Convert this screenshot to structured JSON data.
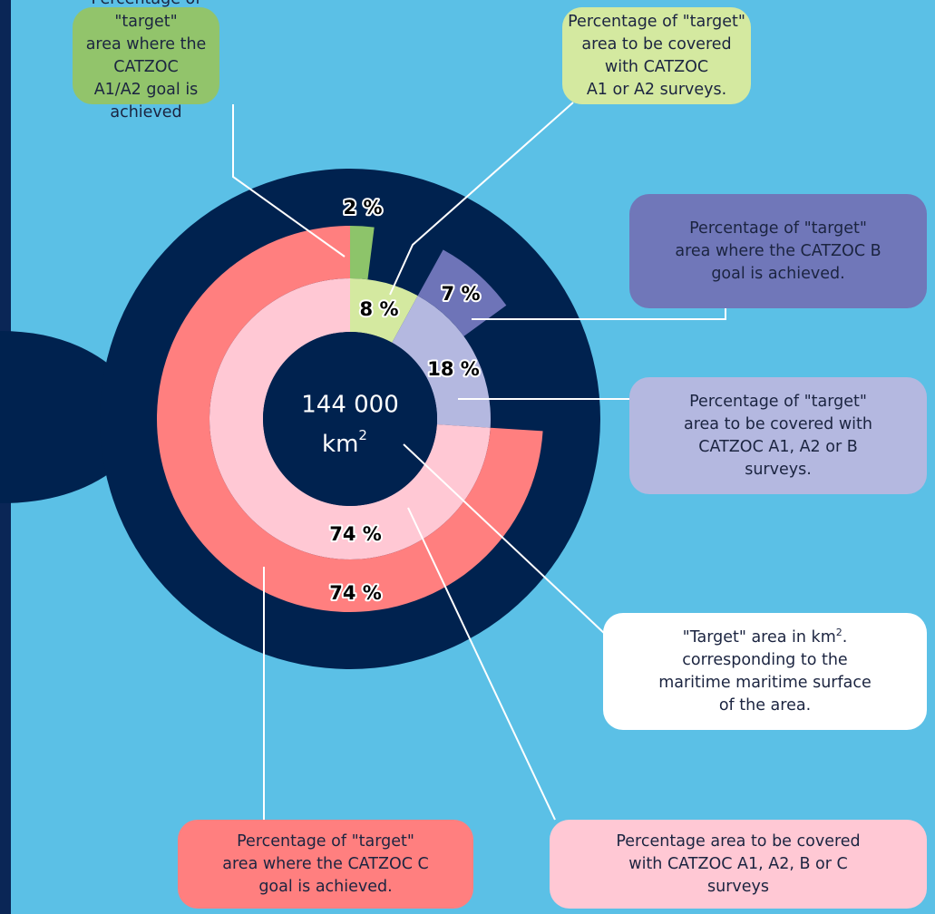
{
  "center": {
    "value": "144 000",
    "unit": "km",
    "unit_sup": "2"
  },
  "rings": {
    "inner": {
      "values": [
        8,
        18,
        74
      ],
      "value_labels": [
        "8 %",
        "18 %",
        "74 %"
      ],
      "colors": [
        "#d4e9a0",
        "#b4b8e0",
        "#ffc8d4"
      ]
    },
    "outer": {
      "values": [
        2,
        7,
        74
      ],
      "value_labels": [
        "2 %",
        "7 %",
        "74 %"
      ],
      "colors": [
        "#8dc46a",
        "#6e74b8",
        "#ff7f7f"
      ]
    }
  },
  "callouts": [
    {
      "lines": [
        "Percentage of \"target\"",
        "area where the CATZOC",
        "A1/A2 goal is achieved"
      ]
    },
    {
      "lines": [
        "Percentage of \"target\"",
        "area to be covered with CATZOC",
        "A1 or A2 surveys."
      ]
    },
    {
      "lines": [
        "Percentage of \"target\"",
        "area where the CATZOC B",
        "goal is achieved."
      ]
    },
    {
      "lines": [
        "Percentage of \"target\"",
        "area to be covered with",
        "CATZOC A1, A2 or B",
        "surveys."
      ]
    },
    {
      "lines": [
        "\"Target\" area in km",
        "corresponding to  the",
        "maritime maritime surface",
        "of the area."
      ],
      "sup": "2",
      "after_sup": "."
    },
    {
      "lines": [
        "Percentage of \"target\"",
        "area where the CATZOC C",
        "goal is achieved."
      ]
    },
    {
      "lines": [
        "Percentage area to be covered",
        "with CATZOC A1, A2, B or C",
        "surveys"
      ]
    }
  ]
}
